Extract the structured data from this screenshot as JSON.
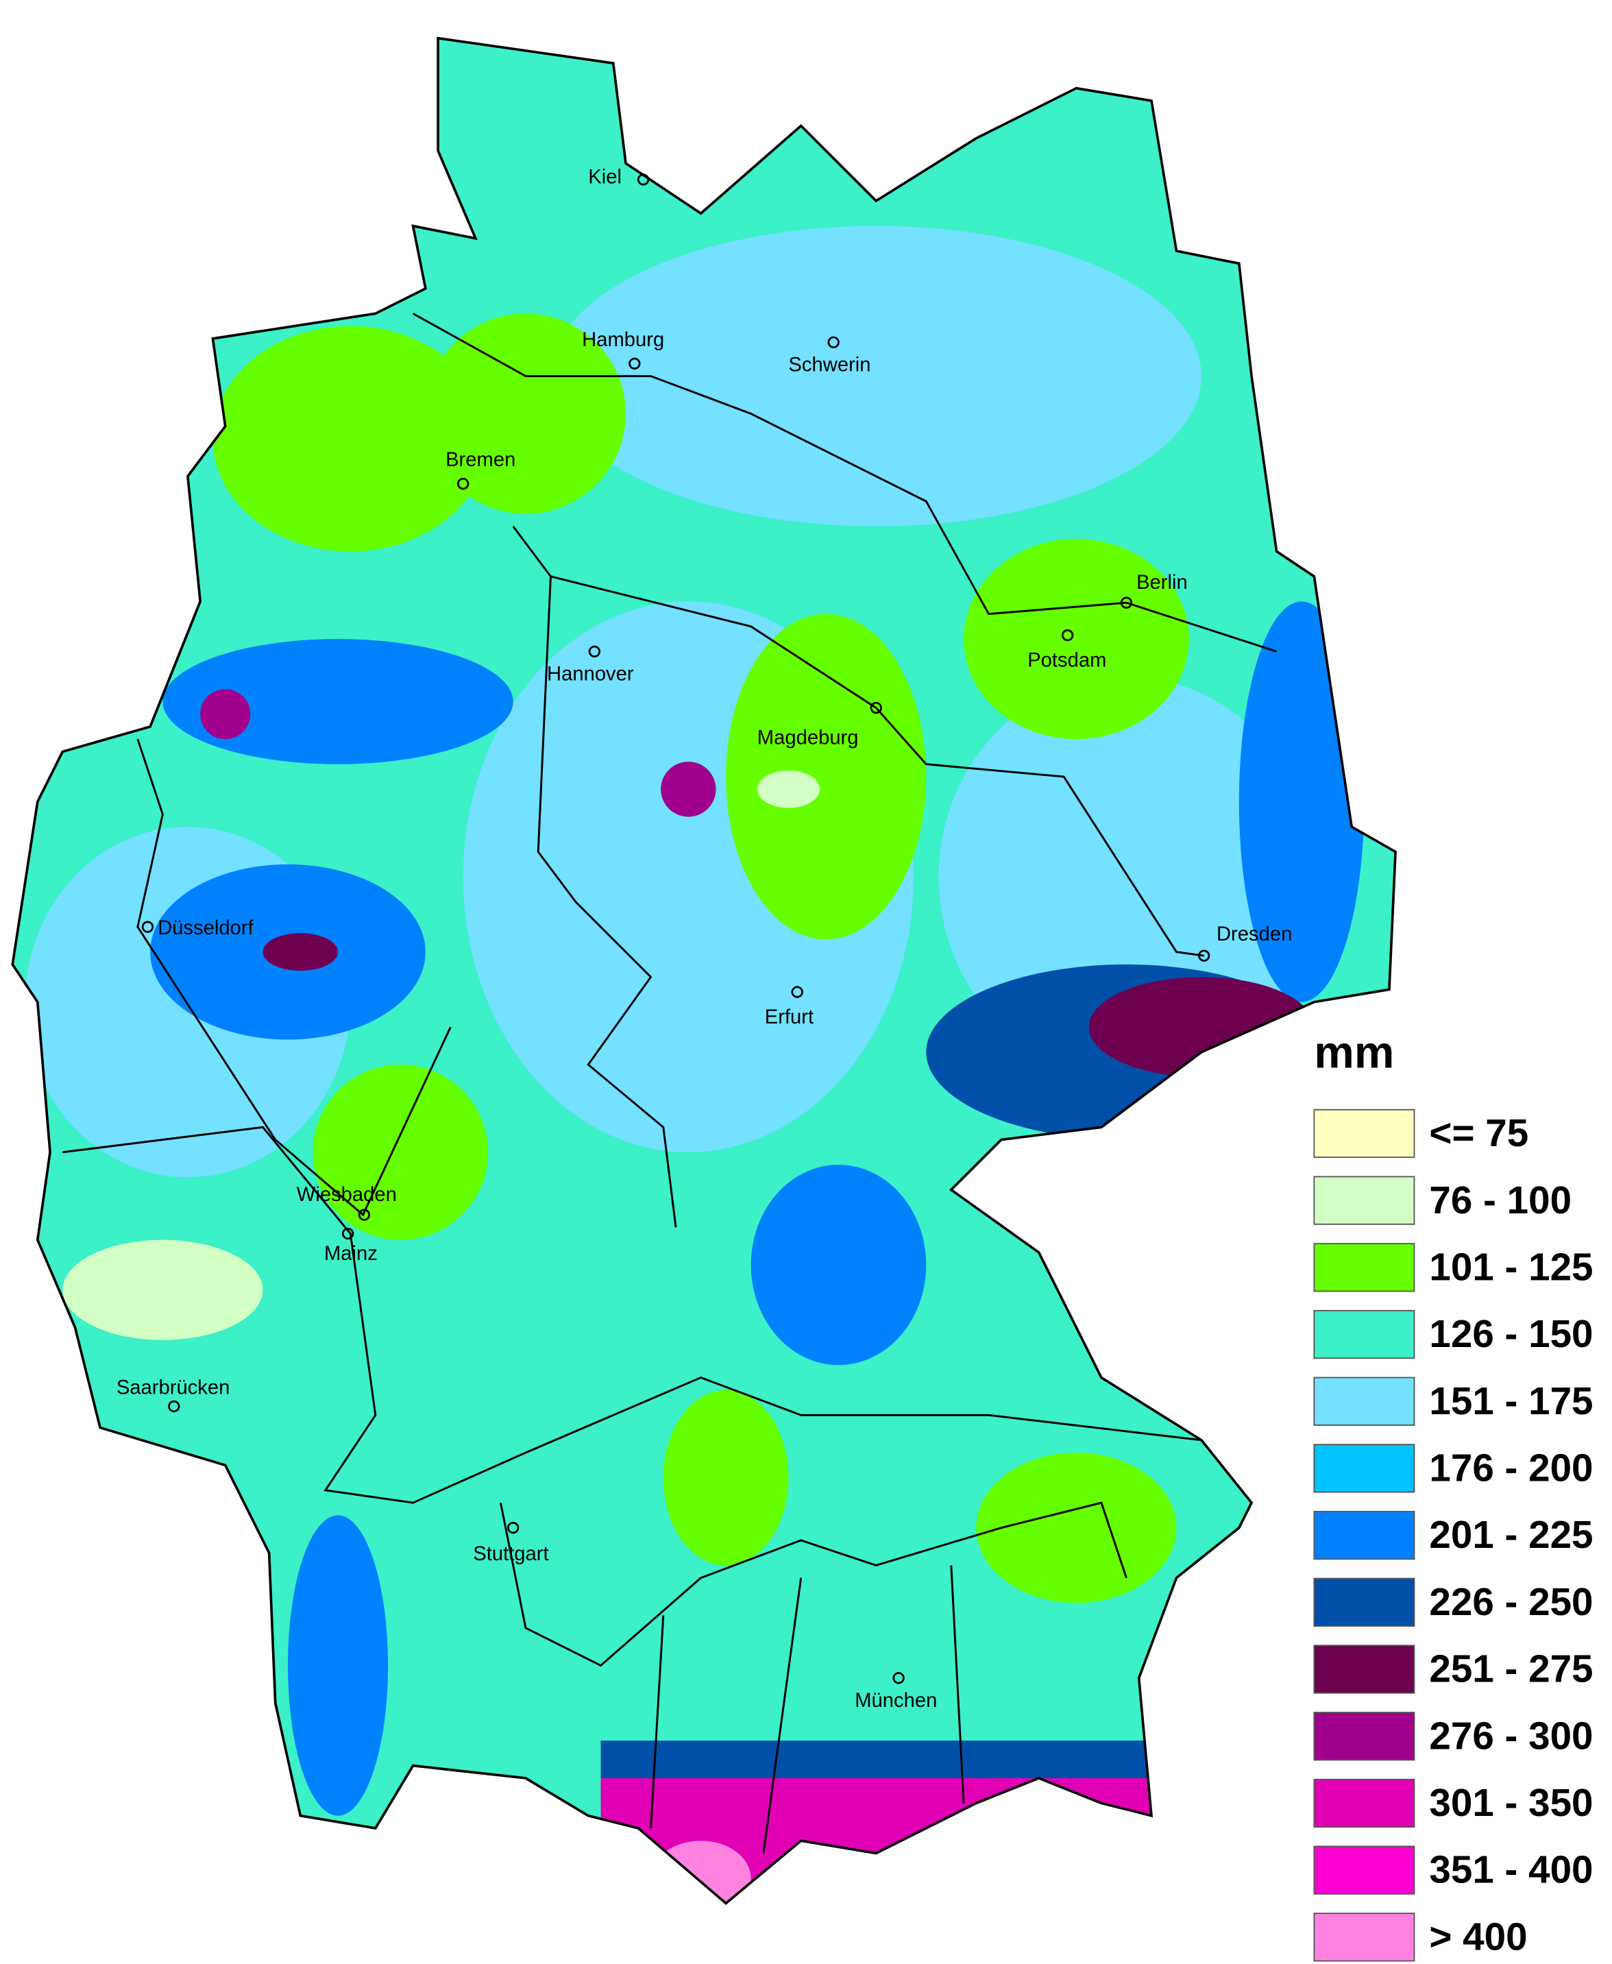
{
  "legend": {
    "title": "mm",
    "items": [
      {
        "label": "<= 75",
        "color": "#ffffc0"
      },
      {
        "label": "76 - 100",
        "color": "#d2ffc4"
      },
      {
        "label": "101 - 125",
        "color": "#66ff00"
      },
      {
        "label": "126 - 150",
        "color": "#3cf0c8"
      },
      {
        "label": "151 - 175",
        "color": "#73e1ff"
      },
      {
        "label": "176 - 200",
        "color": "#00c3ff"
      },
      {
        "label": "201 - 225",
        "color": "#0082ff"
      },
      {
        "label": "226 - 250",
        "color": "#0050aa"
      },
      {
        "label": "251 - 275",
        "color": "#6e0050"
      },
      {
        "label": "276 - 300",
        "color": "#a0008c"
      },
      {
        "label": "301 - 350",
        "color": "#e100b4"
      },
      {
        "label": "351 - 400",
        "color": "#ff00d2"
      },
      {
        "label": "> 400",
        "color": "#ff82e1"
      }
    ]
  },
  "cities": [
    "Kiel",
    "Hamburg",
    "Schwerin",
    "Bremen",
    "Hannover",
    "Magdeburg",
    "Berlin",
    "Potsdam",
    "Düsseldorf",
    "Erfurt",
    "Dresden",
    "Wiesbaden",
    "Mainz",
    "Saarbrücken",
    "Stuttgart",
    "München"
  ]
}
